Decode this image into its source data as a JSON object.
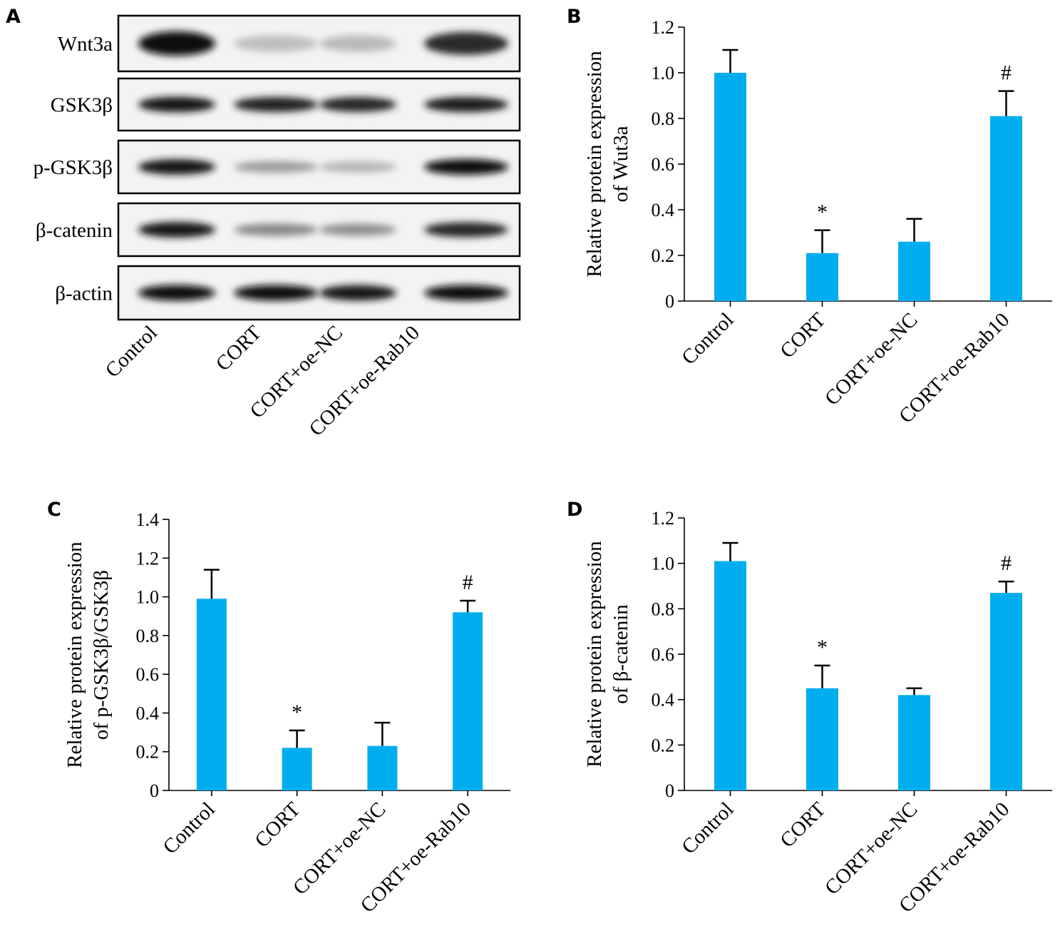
{
  "chart_data": [
    {
      "panel": "A",
      "type": "other",
      "categories": [
        "Control",
        "CORT",
        "CORT+oe-NC",
        "CORT+oe-Rab10"
      ],
      "blots": [
        {
          "label": "Wnt3a",
          "intensity": [
            1.0,
            0.2,
            0.22,
            0.85
          ]
        },
        {
          "label": "GSK3β",
          "intensity": [
            0.95,
            0.9,
            0.88,
            0.92
          ]
        },
        {
          "label": "p-GSK3β",
          "intensity": [
            0.95,
            0.35,
            0.25,
            1.0
          ]
        },
        {
          "label": "β-catenin",
          "intensity": [
            0.95,
            0.45,
            0.42,
            0.88
          ]
        },
        {
          "label": "β-actin",
          "intensity": [
            1.0,
            0.98,
            0.96,
            0.97
          ]
        }
      ]
    },
    {
      "panel": "B",
      "type": "bar",
      "categories": [
        "Control",
        "CORT",
        "CORT+oe-NC",
        "CORT+oe-Rab10"
      ],
      "values": [
        1.0,
        0.21,
        0.26,
        0.81
      ],
      "errors": [
        0.1,
        0.1,
        0.1,
        0.11
      ],
      "annotations": [
        "",
        "*",
        "",
        "#"
      ],
      "ylabel": [
        "Relative protein expression",
        "of Wut3a"
      ],
      "ylim": [
        0,
        1.2
      ],
      "yticks": [
        "0",
        "0.2",
        "0.4",
        "0.6",
        "0.8",
        "1.0",
        "1.2"
      ],
      "bar_color": "#00adef"
    },
    {
      "panel": "C",
      "type": "bar",
      "categories": [
        "Control",
        "CORT",
        "CORT+oe-NC",
        "CORT+oe-Rab10"
      ],
      "values": [
        0.99,
        0.22,
        0.23,
        0.92
      ],
      "errors": [
        0.15,
        0.09,
        0.12,
        0.06
      ],
      "annotations": [
        "",
        "*",
        "",
        "#"
      ],
      "ylabel": [
        "Relative protein expression",
        "of p-GSK3β/GSK3β"
      ],
      "ylim": [
        0,
        1.4
      ],
      "yticks": [
        "0",
        "0.2",
        "0.4",
        "0.6",
        "0.8",
        "1.0",
        "1.2",
        "1.4"
      ],
      "bar_color": "#00adef"
    },
    {
      "panel": "D",
      "type": "bar",
      "categories": [
        "Control",
        "CORT",
        "CORT+oe-NC",
        "CORT+oe-Rab10"
      ],
      "values": [
        1.01,
        0.45,
        0.42,
        0.87
      ],
      "errors": [
        0.08,
        0.1,
        0.03,
        0.05
      ],
      "annotations": [
        "",
        "*",
        "",
        "#"
      ],
      "ylabel": [
        "Relative protein expression",
        "of β-catenin"
      ],
      "ylim": [
        0,
        1.2
      ],
      "yticks": [
        "0",
        "0.2",
        "0.4",
        "0.6",
        "0.8",
        "1.0",
        "1.2"
      ],
      "bar_color": "#00adef"
    }
  ]
}
